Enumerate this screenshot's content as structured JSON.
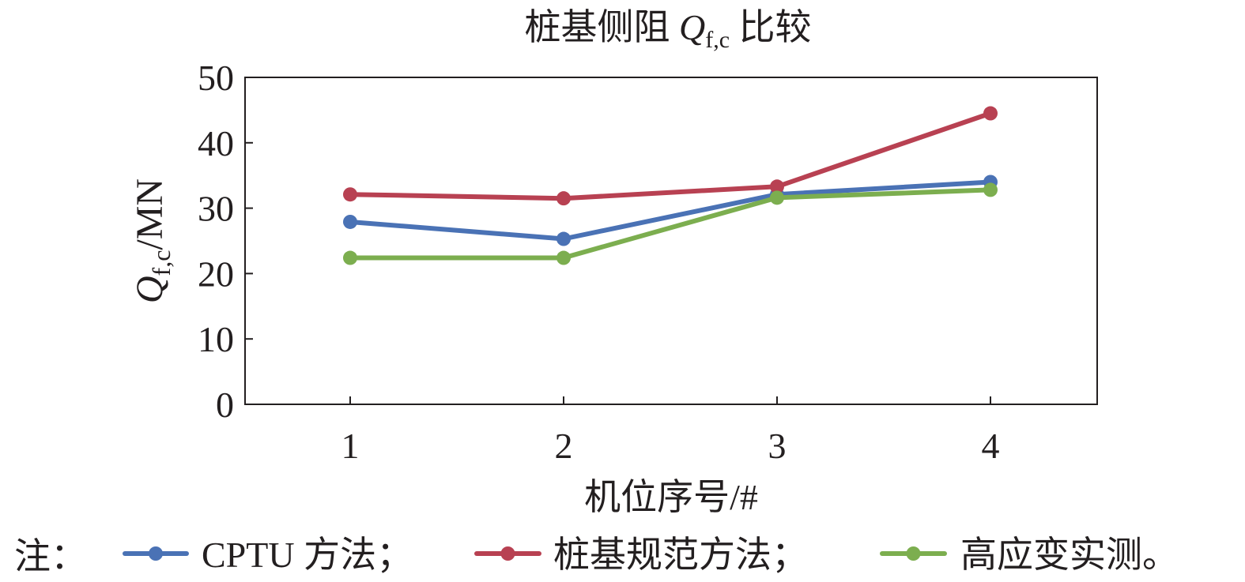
{
  "chart_data": {
    "type": "line",
    "title": "桩基侧阻 ",
    "title_symbol": "Q",
    "title_subscript": "f,c",
    "title_suffix": " 比较",
    "xlabel": "机位序号/#",
    "ylabel_symbol": "Q",
    "ylabel_subscript": "f,c",
    "ylabel_unit": "/MN",
    "categories": [
      "1",
      "2",
      "3",
      "4"
    ],
    "yticks": [
      "0",
      "10",
      "20",
      "30",
      "40",
      "50"
    ],
    "ylim": [
      0,
      50
    ],
    "grid": false,
    "legend_position": "bottom",
    "note_prefix": "注：",
    "series": [
      {
        "name": "CPTU 方法；",
        "color": "#4a72b5",
        "values": [
          27.9,
          25.3,
          32.1,
          34.0
        ]
      },
      {
        "name": "桩基规范方法；",
        "color": "#b84152",
        "values": [
          32.1,
          31.5,
          33.3,
          44.5
        ]
      },
      {
        "name": "高应变实测。",
        "color": "#7cae4f",
        "values": [
          22.4,
          22.4,
          31.6,
          32.8
        ]
      }
    ]
  }
}
